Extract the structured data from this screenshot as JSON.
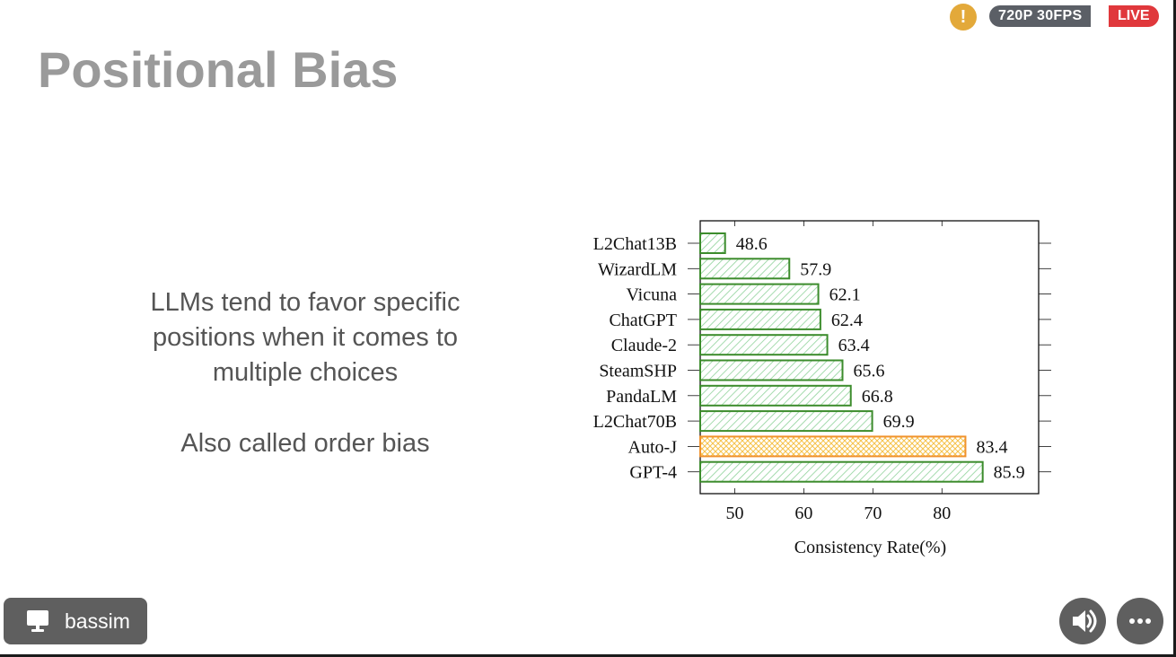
{
  "slide": {
    "title": "Positional Bias",
    "bullet1": "LLMs tend to favor specific positions when it comes to multiple choices",
    "bullet2": "Also called order bias"
  },
  "stream": {
    "warning_icon": "exclamation-icon",
    "warning_glyph": "!",
    "quality": "720P 30FPS",
    "live": "LIVE",
    "live_color": "#e0383c"
  },
  "presenter": {
    "icon": "screen-share-icon",
    "name": "bassim"
  },
  "controls": {
    "audio_icon": "speaker-icon",
    "more_icon": "more-horizontal-icon",
    "more_glyph": "•••"
  },
  "chart_data": {
    "type": "bar",
    "orientation": "horizontal",
    "categories": [
      "L2Chat13B",
      "WizardLM",
      "Vicuna",
      "ChatGPT",
      "Claude-2",
      "SteamSHP",
      "PandaLM",
      "L2Chat70B",
      "Auto-J",
      "GPT-4"
    ],
    "values": [
      48.6,
      57.9,
      62.1,
      62.4,
      63.4,
      65.6,
      66.8,
      69.9,
      83.4,
      85.9
    ],
    "value_labels": [
      "48.6",
      "57.9",
      "62.1",
      "62.4",
      "63.4",
      "65.6",
      "66.8",
      "69.9",
      "83.4",
      "85.9"
    ],
    "highlight": [
      "normal",
      "normal",
      "normal",
      "normal",
      "normal",
      "normal",
      "normal",
      "normal",
      "highlight",
      "normal"
    ],
    "xlim": [
      45,
      94
    ],
    "xticks": [
      50,
      60,
      70,
      80
    ],
    "xlabel": "Consistency Rate(%)",
    "ylabel": "",
    "title": "",
    "colors": {
      "normal_stroke": "#3c8c2c",
      "normal_hatch": "#8fd29a",
      "highlight_stroke": "#f0922c",
      "highlight_hatch": "#f5c24a"
    }
  }
}
